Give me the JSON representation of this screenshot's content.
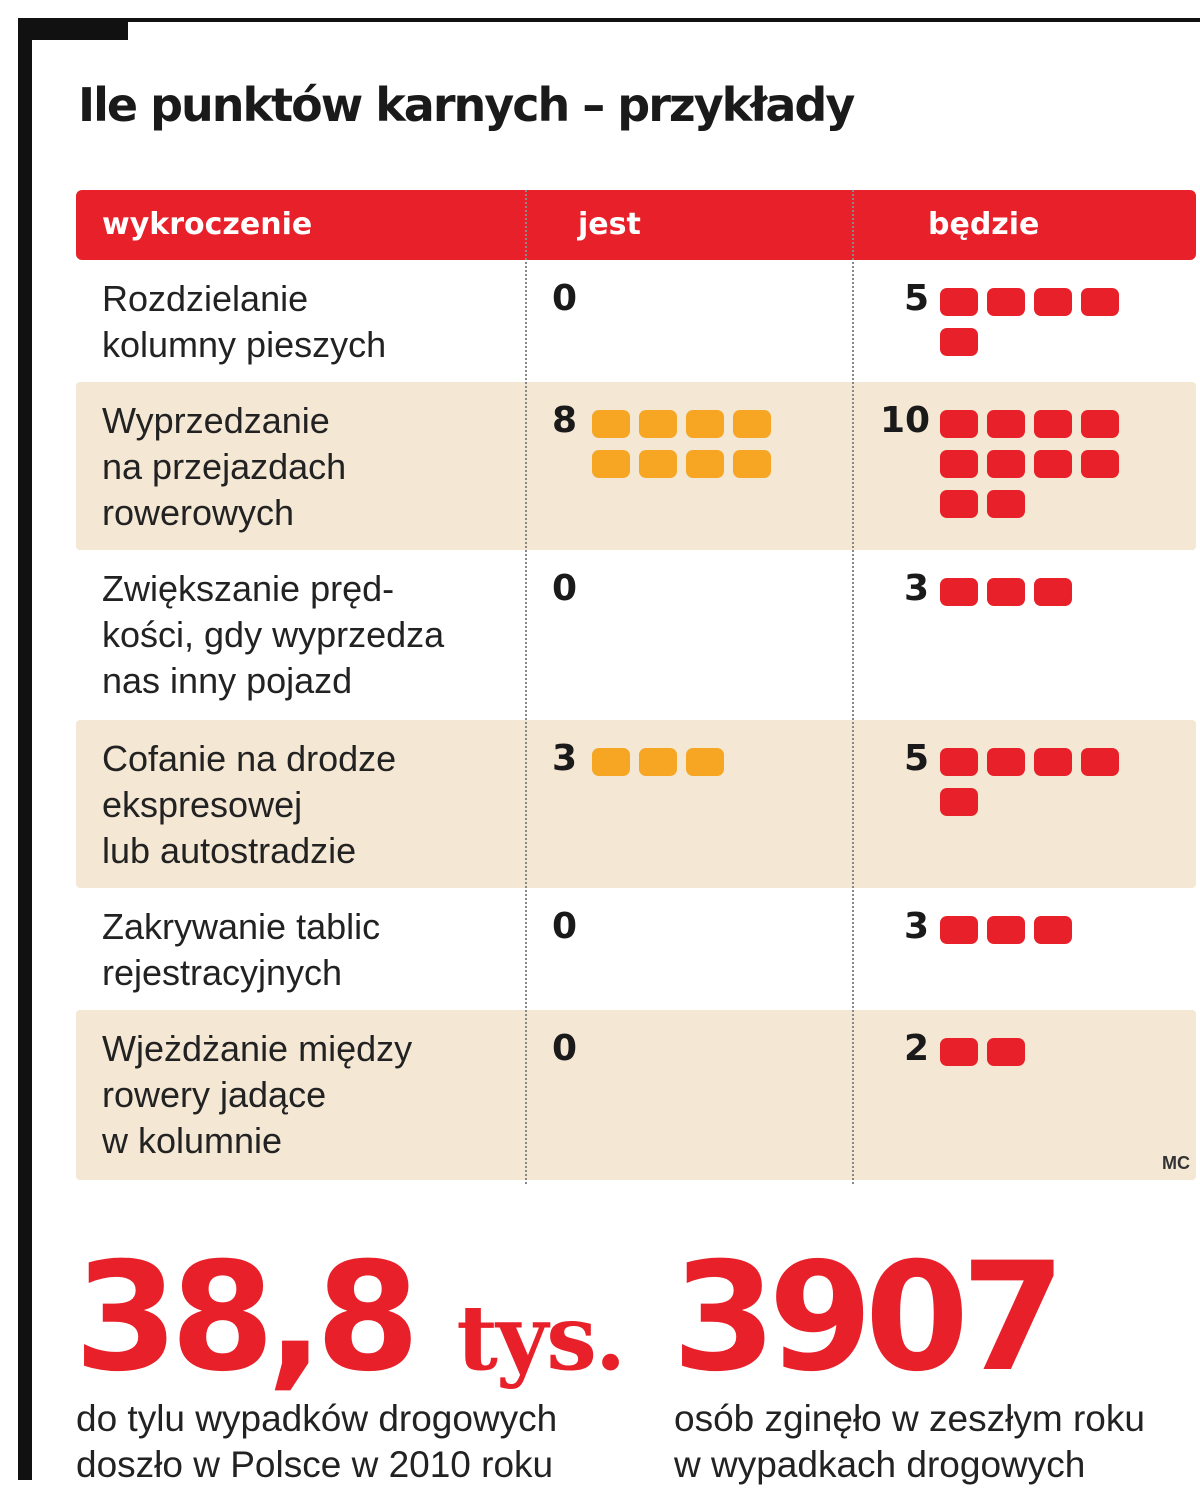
{
  "title": "Ile punktów karnych – przykłady",
  "chart_data": {
    "type": "table",
    "headers": [
      "wykroczenie",
      "jest",
      "będzie"
    ],
    "rows": [
      {
        "offense": [
          "Rozdzielanie",
          "kolumny pieszych"
        ],
        "jest": 0,
        "bedzie": 5
      },
      {
        "offense": [
          "Wyprzedzanie",
          "na przejazdach",
          "rowerowych"
        ],
        "jest": 8,
        "bedzie": 10
      },
      {
        "offense": [
          "Zwiększanie pręd-",
          "kości, gdy wyprzedza",
          "nas inny pojazd"
        ],
        "jest": 0,
        "bedzie": 3
      },
      {
        "offense": [
          "Cofanie na drodze",
          "ekspresowej",
          "lub autostradzie"
        ],
        "jest": 3,
        "bedzie": 5
      },
      {
        "offense": [
          "Zakrywanie tablic",
          "rejestracyjnych"
        ],
        "jest": 0,
        "bedzie": 3
      },
      {
        "offense": [
          "Wjeżdżanie między",
          "rowery jadące",
          "w kolumnie"
        ],
        "jest": 0,
        "bedzie": 2
      }
    ],
    "colors": {
      "jest": "#f6a623",
      "bedzie": "#e8202a",
      "header": "#e8202a",
      "shade": "#f4e7d4"
    }
  },
  "credit": "MC",
  "stats": [
    {
      "value": "38,8",
      "unit": "tys.",
      "caption": [
        "do tylu wypadków drogowych",
        "doszło w Polsce w 2010 roku"
      ]
    },
    {
      "value": "3907",
      "unit": "",
      "caption": [
        "osób zginęło w zeszłym roku",
        "w wypadkach drogowych"
      ]
    }
  ]
}
